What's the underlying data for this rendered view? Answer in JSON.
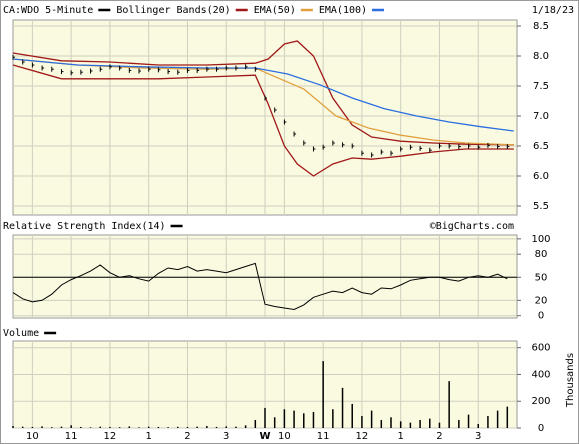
{
  "chart_data": {
    "type": "stock",
    "date": "1/18/23",
    "x": [
      0,
      3,
      6,
      9,
      12,
      15,
      18,
      21,
      24,
      27,
      30,
      33,
      36,
      39,
      42,
      45,
      48,
      51,
      54,
      57,
      60,
      63,
      66,
      69,
      72,
      75,
      78,
      81,
      84,
      87,
      90,
      93,
      96,
      99,
      102,
      105,
      108,
      111,
      114,
      117,
      120,
      123,
      126,
      129,
      132,
      135,
      138,
      141,
      144,
      147,
      150,
      153
    ],
    "xlim": [
      0,
      156
    ],
    "xticks": [
      {
        "value": 6,
        "label": "10"
      },
      {
        "value": 18,
        "label": "11"
      },
      {
        "value": 30,
        "label": "12"
      },
      {
        "value": 42,
        "label": "1"
      },
      {
        "value": 54,
        "label": "2"
      },
      {
        "value": 66,
        "label": "3"
      },
      {
        "value": 78,
        "label": "W"
      },
      {
        "value": 84,
        "label": "10"
      },
      {
        "value": 96,
        "label": "11"
      },
      {
        "value": 108,
        "label": "12"
      },
      {
        "value": 120,
        "label": "1"
      },
      {
        "value": 132,
        "label": "2"
      },
      {
        "value": 144,
        "label": "3"
      }
    ],
    "ylim": [
      5.35,
      8.6
    ],
    "yticks": [
      5.5,
      {
        "value": 6,
        "label": "6.0"
      },
      6.5,
      {
        "value": 7,
        "label": "7.0"
      },
      7.5,
      {
        "value": 8,
        "label": "8.0"
      },
      8.5
    ],
    "grid": true,
    "series": [
      {
        "name": "CA:WDO 5-Minute",
        "color": "#000000",
        "values": [
          7.98,
          7.9,
          7.85,
          7.8,
          7.78,
          7.74,
          7.72,
          7.73,
          7.75,
          7.78,
          7.82,
          7.8,
          7.76,
          7.75,
          7.78,
          7.77,
          7.74,
          7.73,
          7.76,
          7.76,
          7.78,
          7.78,
          7.8,
          7.8,
          7.82,
          7.78,
          7.3,
          7.1,
          6.9,
          6.7,
          6.55,
          6.45,
          6.48,
          6.55,
          6.52,
          6.5,
          6.38,
          6.35,
          6.4,
          6.38,
          6.45,
          6.48,
          6.46,
          6.43,
          6.5,
          6.5,
          6.49,
          6.5,
          6.48,
          6.51,
          6.49,
          6.49
        ]
      },
      {
        "name": "Bollinger Bands(20)",
        "color": "#a01818",
        "x": [
          0,
          15,
          30,
          45,
          60,
          75,
          79,
          84,
          88,
          93,
          99,
          105,
          111,
          120,
          130,
          140,
          155
        ],
        "upper": [
          8.05,
          7.92,
          7.9,
          7.85,
          7.85,
          7.88,
          7.95,
          8.2,
          8.25,
          8.0,
          7.3,
          6.85,
          6.65,
          6.58,
          6.55,
          6.53,
          6.52
        ],
        "lower": [
          7.85,
          7.62,
          7.62,
          7.62,
          7.65,
          7.68,
          7.2,
          6.5,
          6.2,
          6.0,
          6.2,
          6.3,
          6.28,
          6.33,
          6.4,
          6.45,
          6.45
        ]
      },
      {
        "name": "EMA(50)",
        "color": "#e0a040",
        "x": [
          0,
          20,
          40,
          60,
          75,
          80,
          90,
          100,
          110,
          120,
          130,
          140,
          155
        ],
        "values": [
          7.95,
          7.85,
          7.8,
          7.78,
          7.8,
          7.68,
          7.45,
          7.0,
          6.8,
          6.68,
          6.6,
          6.55,
          6.52
        ]
      },
      {
        "name": "EMA(100)",
        "color": "#2a6ee0",
        "x": [
          0,
          20,
          40,
          60,
          75,
          85,
          95,
          105,
          115,
          125,
          135,
          145,
          155
        ],
        "values": [
          7.95,
          7.85,
          7.82,
          7.8,
          7.8,
          7.7,
          7.52,
          7.3,
          7.12,
          7.0,
          6.9,
          6.82,
          6.75
        ]
      }
    ],
    "rsi": {
      "title": "Relative Strength Index(14)",
      "credit": "©BigCharts.com",
      "color": "#000000",
      "ylim": [
        -3,
        105
      ],
      "yticks": [
        0,
        20,
        50,
        80,
        100
      ],
      "reference": 50,
      "values": [
        30,
        22,
        18,
        20,
        28,
        40,
        47,
        52,
        58,
        66,
        56,
        50,
        52,
        48,
        45,
        55,
        62,
        60,
        64,
        58,
        60,
        58,
        56,
        60,
        64,
        68,
        15,
        12,
        10,
        8,
        14,
        24,
        28,
        32,
        30,
        36,
        30,
        28,
        36,
        35,
        40,
        46,
        48,
        50,
        50,
        47,
        45,
        50,
        52,
        50,
        54,
        48
      ]
    },
    "volume": {
      "title": "Volume",
      "ylabel": "Thousands",
      "color": "#000000",
      "ylim": [
        0,
        650
      ],
      "yticks": [
        0,
        200,
        400,
        600
      ],
      "values": [
        15,
        10,
        8,
        12,
        6,
        10,
        20,
        8,
        5,
        10,
        8,
        6,
        12,
        5,
        10,
        8,
        6,
        9,
        7,
        10,
        15,
        8,
        12,
        10,
        20,
        60,
        150,
        80,
        140,
        130,
        110,
        120,
        500,
        140,
        300,
        180,
        90,
        130,
        60,
        80,
        50,
        40,
        60,
        70,
        40,
        350,
        60,
        100,
        30,
        90,
        130,
        160
      ]
    }
  }
}
